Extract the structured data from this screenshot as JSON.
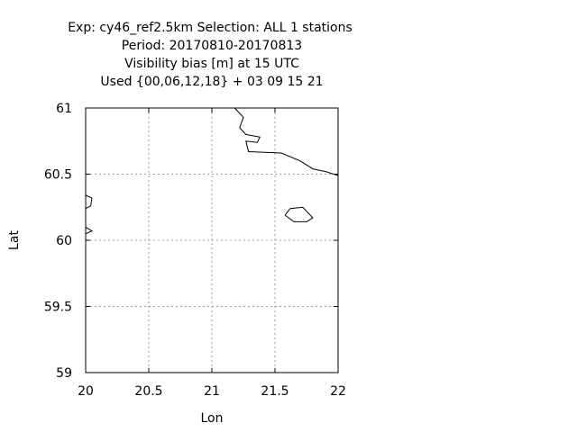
{
  "chart_data": {
    "type": "map",
    "title_lines": [
      "Exp: cy46_ref2.5km   Selection: ALL      1 stations",
      "Period: 20170810-20170813",
      "Visibility bias [m] at  15 UTC",
      "Used {00,06,12,18} + 03 09 15 21"
    ],
    "xlabel": "Lon",
    "ylabel": "Lat",
    "xlim": [
      20,
      22
    ],
    "ylim": [
      59,
      61
    ],
    "xticks": [
      20,
      20.5,
      21,
      21.5,
      22
    ],
    "yticks": [
      59,
      59.5,
      60,
      60.5,
      61
    ],
    "xtick_labels": [
      "20",
      "20.5",
      "21",
      "21.5",
      "22"
    ],
    "ytick_labels": [
      "59",
      "59.5",
      "60",
      "60.5",
      "61"
    ],
    "grid": true,
    "coastlines": [
      [
        [
          21.18,
          61.0
        ],
        [
          21.25,
          60.93
        ],
        [
          21.22,
          60.85
        ],
        [
          21.27,
          60.8
        ],
        [
          21.38,
          60.78
        ],
        [
          21.36,
          60.74
        ],
        [
          21.27,
          60.75
        ],
        [
          21.29,
          60.67
        ],
        [
          21.55,
          60.66
        ],
        [
          21.7,
          60.6
        ],
        [
          21.8,
          60.54
        ],
        [
          21.9,
          60.52
        ],
        [
          22.0,
          60.49
        ]
      ],
      [
        [
          21.58,
          60.19
        ],
        [
          21.62,
          60.24
        ],
        [
          21.72,
          60.25
        ],
        [
          21.8,
          60.17
        ],
        [
          21.75,
          60.14
        ],
        [
          21.65,
          60.14
        ],
        [
          21.58,
          60.19
        ]
      ],
      [
        [
          20.0,
          60.34
        ],
        [
          20.05,
          60.32
        ],
        [
          20.04,
          60.26
        ],
        [
          20.0,
          60.24
        ]
      ],
      [
        [
          20.0,
          60.1
        ],
        [
          20.05,
          60.07
        ],
        [
          20.0,
          60.05
        ]
      ]
    ]
  }
}
